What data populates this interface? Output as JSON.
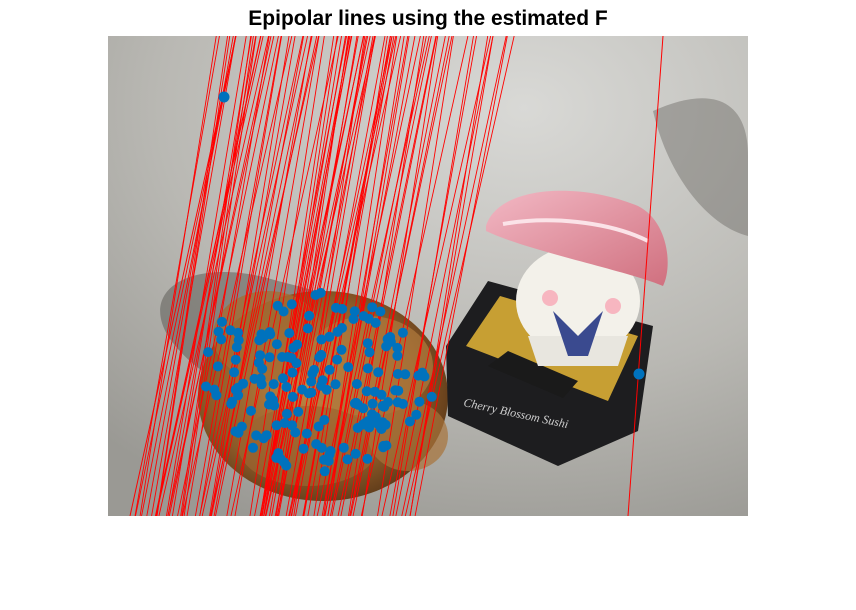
{
  "figure": {
    "title": "Epipolar lines using the estimated F"
  },
  "photo": {
    "description_icons": [
      "bread-pastry",
      "sushi-toy-figure",
      "black-box"
    ],
    "box_label": "Cherry Blossom Sushi"
  },
  "overlay": {
    "line_color": "#ff0000",
    "point_color": "#0072bd"
  }
}
